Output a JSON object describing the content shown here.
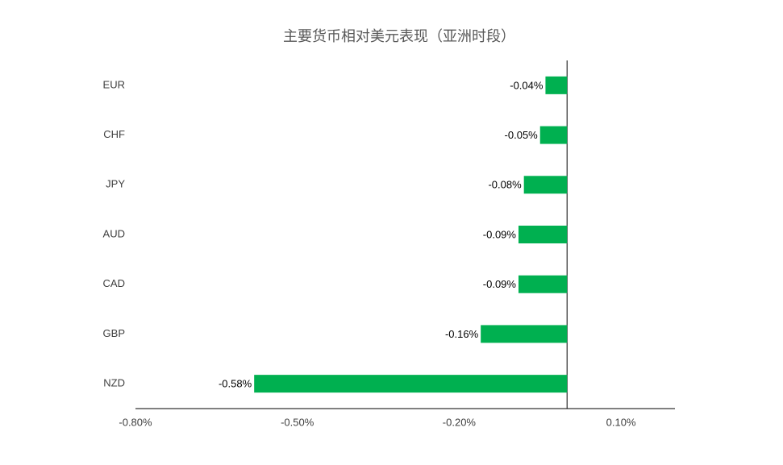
{
  "chart_data": {
    "type": "hbar",
    "title": "主要货币相对美元表现（亚洲时段）",
    "categories": [
      "EUR",
      "CHF",
      "JPY",
      "AUD",
      "CAD",
      "GBP",
      "NZD"
    ],
    "values": [
      -0.04,
      -0.05,
      -0.08,
      -0.09,
      -0.09,
      -0.16,
      -0.58
    ],
    "value_labels": [
      "-0.04%",
      "-0.05%",
      "-0.08%",
      "-0.09%",
      "-0.09%",
      "-0.16%",
      "-0.58%"
    ],
    "color": "#00b050",
    "xlim": [
      -0.8,
      0.2
    ],
    "xticks": [
      {
        "value": -0.8,
        "label": "-0.80%"
      },
      {
        "value": -0.5,
        "label": "-0.50%"
      },
      {
        "value": -0.2,
        "label": "-0.20%"
      },
      {
        "value": 0.1,
        "label": "0.10%"
      }
    ]
  }
}
